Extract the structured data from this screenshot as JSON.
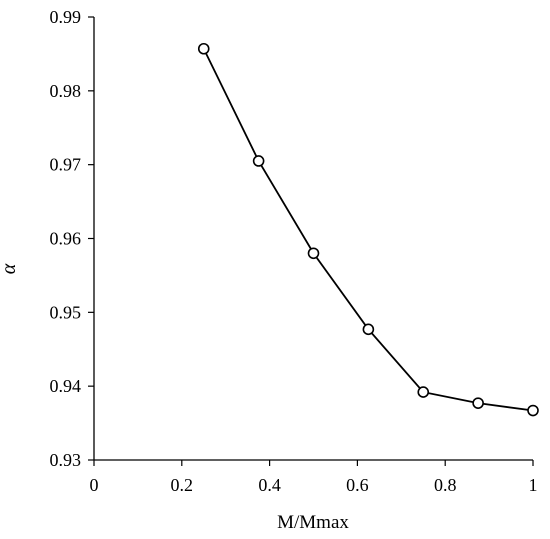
{
  "chart_data": {
    "type": "line",
    "title": "",
    "xlabel": "M/Mmax",
    "ylabel": "α",
    "xlim": [
      0,
      1
    ],
    "ylim": [
      0.93,
      0.99
    ],
    "xticks": [
      0,
      0.2,
      0.4,
      0.6,
      0.8,
      1
    ],
    "xtick_labels": [
      "0",
      "0.2",
      "0.4",
      "0.6",
      "0.8",
      "1"
    ],
    "yticks": [
      0.93,
      0.94,
      0.95,
      0.96,
      0.97,
      0.98,
      0.99
    ],
    "ytick_labels": [
      "0.93",
      "0.94",
      "0.95",
      "0.96",
      "0.97",
      "0.98",
      "0.99"
    ],
    "grid": false,
    "legend": "none",
    "marker": "open-circle",
    "line_color": "#000000",
    "series": [
      {
        "x": [
          0.25,
          0.375,
          0.5,
          0.625,
          0.75,
          0.875,
          1.0
        ],
        "y": [
          0.9857,
          0.9705,
          0.958,
          0.9477,
          0.9392,
          0.9377,
          0.9367
        ]
      }
    ]
  }
}
